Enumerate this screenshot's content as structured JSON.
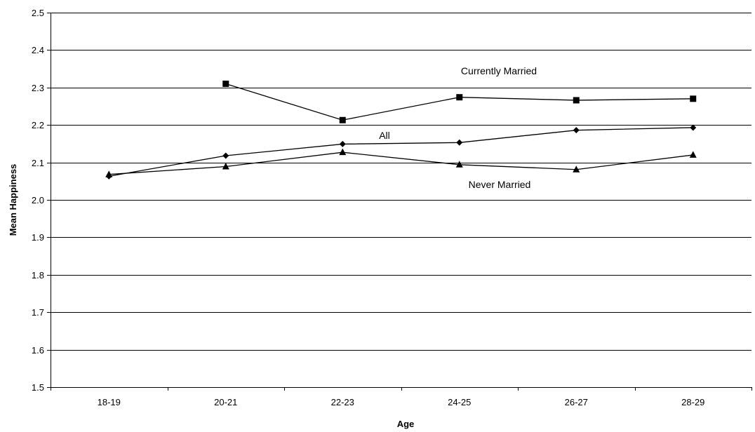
{
  "chart_data": {
    "type": "line",
    "title": "",
    "xlabel": "Age",
    "ylabel": "Mean Happiness",
    "ylim": [
      1.5,
      2.5
    ],
    "ytick_step": 0.1,
    "grid": true,
    "legend": "none (series labeled inline)",
    "categories": [
      "18-19",
      "20-21",
      "22-23",
      "24-25",
      "26-27",
      "28-29"
    ],
    "series": [
      {
        "name": "Currently Married",
        "marker": "square",
        "values": [
          null,
          2.31,
          2.213,
          2.274,
          2.266,
          2.27
        ]
      },
      {
        "name": "All",
        "marker": "diamond",
        "values": [
          2.063,
          2.118,
          2.149,
          2.153,
          2.186,
          2.193
        ]
      },
      {
        "name": "Never Married",
        "marker": "triangle",
        "values": [
          2.068,
          2.089,
          2.127,
          2.094,
          2.081,
          2.12
        ]
      }
    ]
  }
}
